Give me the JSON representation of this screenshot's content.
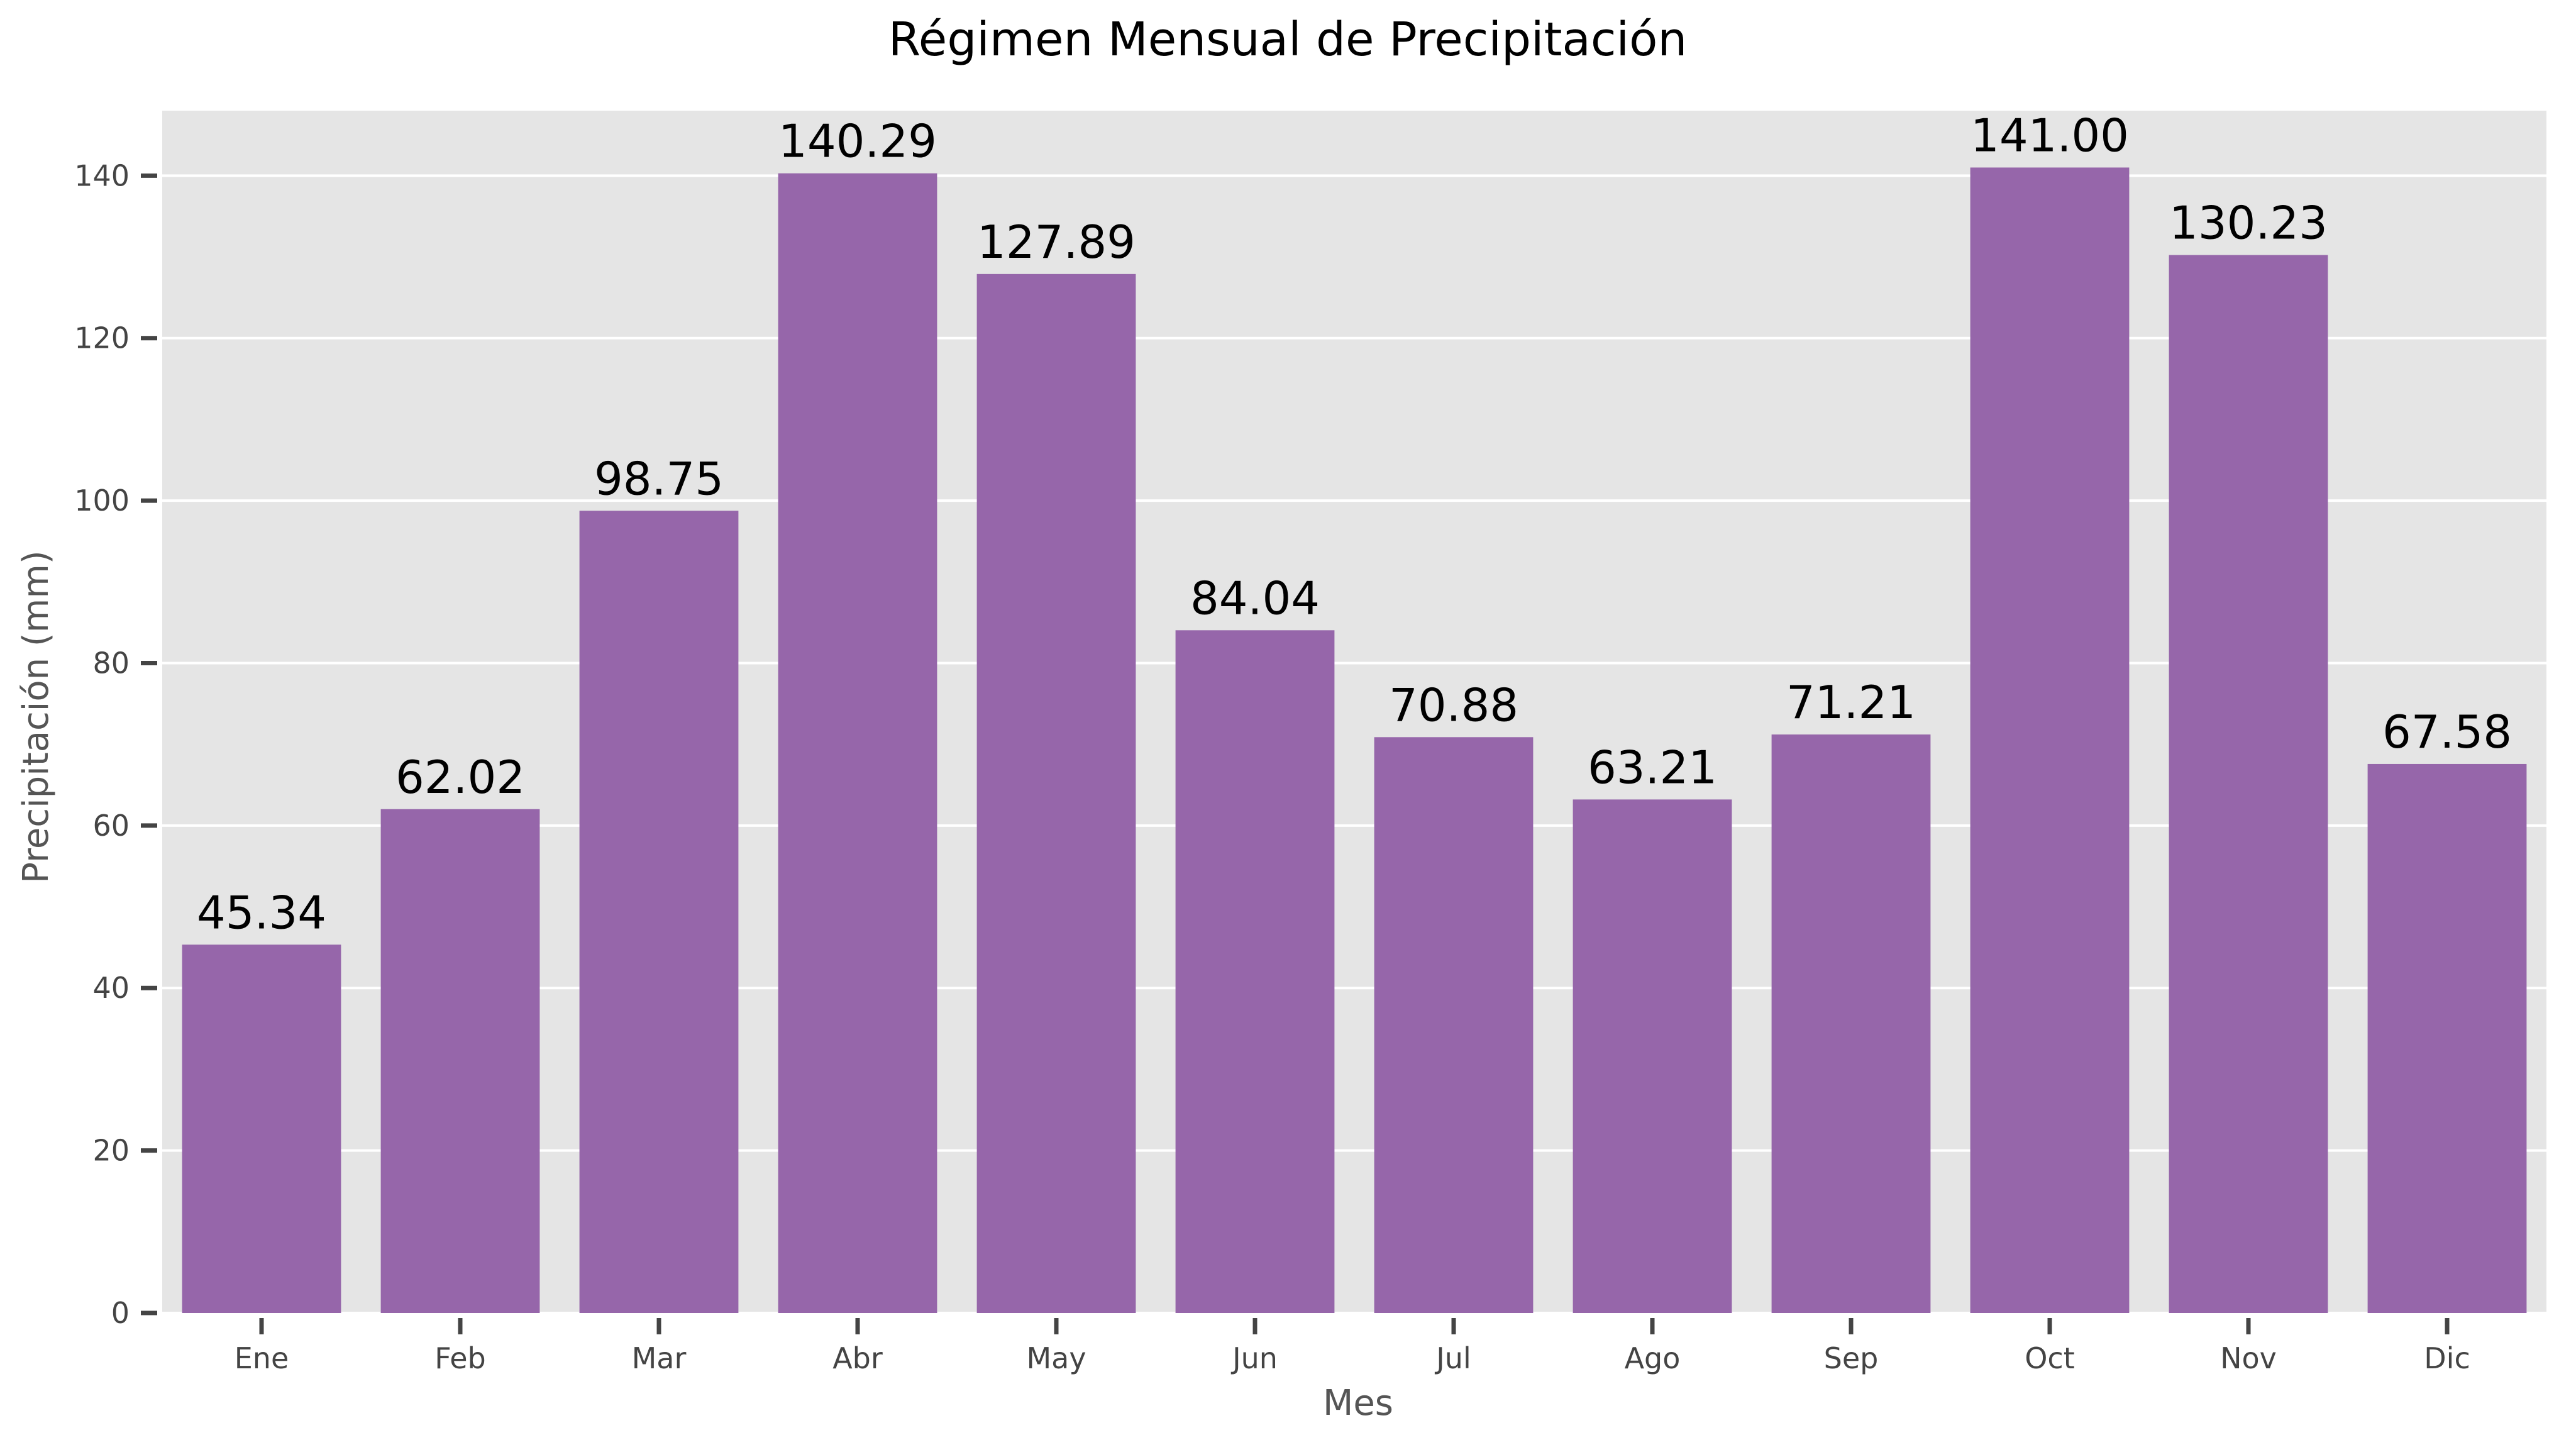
{
  "chart_data": {
    "type": "bar",
    "title": "Régimen Mensual de Precipitación",
    "xlabel": "Mes",
    "ylabel": "Precipitación (mm)",
    "categories": [
      "Ene",
      "Feb",
      "Mar",
      "Abr",
      "May",
      "Jun",
      "Jul",
      "Ago",
      "Sep",
      "Oct",
      "Nov",
      "Dic"
    ],
    "values": [
      45.34,
      62.02,
      98.75,
      140.29,
      127.89,
      84.04,
      70.88,
      63.21,
      71.21,
      141.0,
      130.23,
      67.58
    ],
    "value_labels": [
      "45.34",
      "62.02",
      "98.75",
      "140.29",
      "127.89",
      "84.04",
      "70.88",
      "63.21",
      "71.21",
      "141.00",
      "130.23",
      "67.58"
    ],
    "yticks": [
      0,
      20,
      40,
      60,
      80,
      100,
      120,
      140
    ],
    "ylim": [
      0,
      148
    ],
    "grid": true,
    "bar_color": "#9666AA",
    "background_color": "#E5E5E5"
  }
}
